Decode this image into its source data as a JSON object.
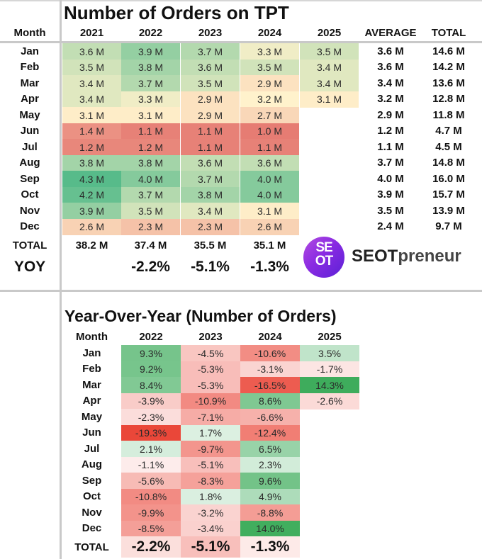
{
  "chart_data": [
    {
      "type": "heatmap",
      "title": "Number of Orders on TPT",
      "row_header": "Month",
      "columns": [
        "2021",
        "2022",
        "2023",
        "2024",
        "2025"
      ],
      "summary_columns": [
        "AVERAGE",
        "TOTAL"
      ],
      "unit": "M",
      "rows": [
        {
          "month": "Jan",
          "values": [
            3.6,
            3.9,
            3.7,
            3.3,
            3.5
          ],
          "average": 3.6,
          "total": 14.6
        },
        {
          "month": "Feb",
          "values": [
            3.5,
            3.8,
            3.6,
            3.5,
            3.4
          ],
          "average": 3.6,
          "total": 14.2
        },
        {
          "month": "Mar",
          "values": [
            3.4,
            3.7,
            3.5,
            2.9,
            3.4
          ],
          "average": 3.4,
          "total": 13.6
        },
        {
          "month": "Apr",
          "values": [
            3.4,
            3.3,
            2.9,
            3.2,
            3.1
          ],
          "average": 3.2,
          "total": 12.8
        },
        {
          "month": "May",
          "values": [
            3.1,
            3.1,
            2.9,
            2.7,
            null
          ],
          "average": 2.9,
          "total": 11.8
        },
        {
          "month": "Jun",
          "values": [
            1.4,
            1.1,
            1.1,
            1.0,
            null
          ],
          "average": 1.2,
          "total": 4.7
        },
        {
          "month": "Jul",
          "values": [
            1.2,
            1.2,
            1.1,
            1.1,
            null
          ],
          "average": 1.1,
          "total": 4.5
        },
        {
          "month": "Aug",
          "values": [
            3.8,
            3.8,
            3.6,
            3.6,
            null
          ],
          "average": 3.7,
          "total": 14.8
        },
        {
          "month": "Sep",
          "values": [
            4.3,
            4.0,
            3.7,
            4.0,
            null
          ],
          "average": 4.0,
          "total": 16.0
        },
        {
          "month": "Oct",
          "values": [
            4.2,
            3.7,
            3.8,
            4.0,
            null
          ],
          "average": 3.9,
          "total": 15.7
        },
        {
          "month": "Nov",
          "values": [
            3.9,
            3.5,
            3.4,
            3.1,
            null
          ],
          "average": 3.5,
          "total": 13.9
        },
        {
          "month": "Dec",
          "values": [
            2.6,
            2.3,
            2.3,
            2.6,
            null
          ],
          "average": 2.4,
          "total": 9.7
        }
      ],
      "total_label": "TOTAL",
      "totals": [
        38.2,
        37.4,
        35.5,
        35.1,
        null
      ],
      "yoy_label": "YOY",
      "yoy": [
        null,
        -2.2,
        -5.1,
        -1.3,
        null
      ],
      "color_scale": {
        "low": "#e67c73",
        "mid": "#fff2cc",
        "high": "#57bb8a"
      }
    },
    {
      "type": "heatmap",
      "title": "Year-Over-Year (Number of Orders)",
      "row_header": "Month",
      "columns": [
        "2022",
        "2023",
        "2024",
        "2025"
      ],
      "unit": "%",
      "rows": [
        {
          "month": "Jan",
          "values": [
            9.3,
            -4.5,
            -10.6,
            3.5
          ]
        },
        {
          "month": "Feb",
          "values": [
            9.2,
            -5.3,
            -3.1,
            -1.7
          ]
        },
        {
          "month": "Mar",
          "values": [
            8.4,
            -5.3,
            -16.5,
            14.3
          ]
        },
        {
          "month": "Apr",
          "values": [
            -3.9,
            -10.9,
            8.6,
            -2.6
          ]
        },
        {
          "month": "May",
          "values": [
            -2.3,
            -7.1,
            -6.6,
            null
          ]
        },
        {
          "month": "Jun",
          "values": [
            -19.3,
            1.7,
            -12.4,
            null
          ]
        },
        {
          "month": "Jul",
          "values": [
            2.1,
            -9.7,
            6.5,
            null
          ]
        },
        {
          "month": "Aug",
          "values": [
            -1.1,
            -5.1,
            2.3,
            null
          ]
        },
        {
          "month": "Sep",
          "values": [
            -5.6,
            -8.3,
            9.6,
            null
          ]
        },
        {
          "month": "Oct",
          "values": [
            -10.8,
            1.8,
            4.9,
            null
          ]
        },
        {
          "month": "Nov",
          "values": [
            -9.9,
            -3.2,
            -8.8,
            null
          ]
        },
        {
          "month": "Dec",
          "values": [
            -8.5,
            -3.4,
            14.0,
            null
          ]
        }
      ],
      "total_label": "TOTAL",
      "totals": [
        -2.2,
        -5.1,
        -1.3,
        null
      ],
      "color_scale": {
        "negative": "#ea4335",
        "zero": "#ffffff",
        "positive": "#34a853"
      }
    }
  ],
  "brand": {
    "logo_text_top": "SE",
    "logo_text_bottom": "OT",
    "name_part1": "SEOT",
    "name_part2": "preneur"
  }
}
